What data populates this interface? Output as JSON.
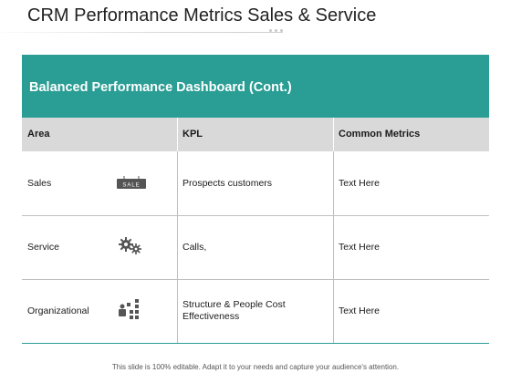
{
  "slide": {
    "title": "CRM Performance Metrics Sales & Service",
    "footer": "This slide is 100% editable. Adapt it to your needs and capture your audience's attention."
  },
  "table": {
    "heading": "Balanced Performance Dashboard (Cont.)",
    "columns": [
      "Area",
      "KPL",
      "Common Metrics"
    ],
    "rows": [
      {
        "area": "Sales",
        "icon": "sale-sign-icon",
        "icon_text": "SALE",
        "kpl": "Prospects customers",
        "metric": "Text Here"
      },
      {
        "area": "Service",
        "icon": "gears-icon",
        "kpl": "Calls,",
        "metric": "Text Here"
      },
      {
        "area": "Organizational",
        "icon": "org-chart-icon",
        "kpl": "Structure & People Cost Effectiveness",
        "metric": "Text Here"
      }
    ]
  },
  "colors": {
    "accent": "#2a9d94",
    "column_header_bg": "#d9d9d9",
    "text": "#1a1a1a"
  }
}
